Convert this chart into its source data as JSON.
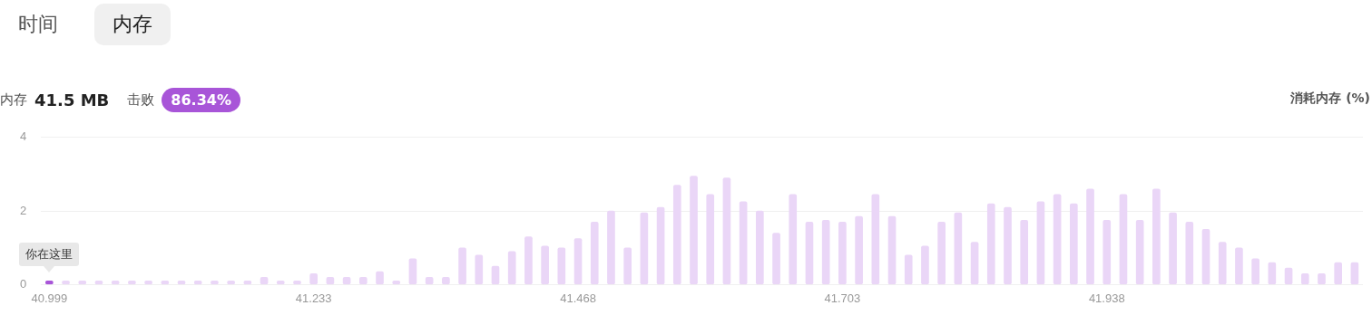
{
  "chart_data": {
    "type": "bar",
    "ylabel": "消耗内存 (%)",
    "categories": [
      "40.999",
      null,
      null,
      null,
      null,
      null,
      null,
      null,
      null,
      null,
      null,
      null,
      null,
      null,
      null,
      null,
      "41.233",
      null,
      null,
      null,
      null,
      null,
      null,
      null,
      null,
      null,
      null,
      null,
      null,
      null,
      null,
      null,
      "41.468",
      null,
      null,
      null,
      null,
      null,
      null,
      null,
      null,
      null,
      null,
      null,
      null,
      null,
      null,
      null,
      "41.703",
      null,
      null,
      null,
      null,
      null,
      null,
      null,
      null,
      null,
      null,
      null,
      null,
      null,
      null,
      null,
      "41.938",
      null,
      null,
      null,
      null,
      null,
      null,
      null,
      null,
      null,
      null,
      null,
      null,
      null,
      null,
      null
    ],
    "values": [
      0.1,
      0.1,
      0.1,
      0.1,
      0.1,
      0.1,
      0.1,
      0.1,
      0.1,
      0.1,
      0.1,
      0.1,
      0.1,
      0.2,
      0.1,
      0.1,
      0.3,
      0.2,
      0.2,
      0.2,
      0.35,
      0.1,
      0.7,
      0.2,
      0.2,
      1.0,
      0.8,
      0.5,
      0.9,
      1.3,
      1.05,
      1.0,
      1.25,
      1.7,
      2.0,
      1.0,
      1.95,
      2.1,
      2.7,
      2.95,
      2.45,
      2.9,
      2.25,
      2.0,
      1.4,
      2.45,
      1.7,
      1.75,
      1.7,
      1.85,
      2.45,
      1.85,
      0.8,
      1.05,
      1.7,
      1.95,
      1.15,
      2.2,
      2.1,
      1.75,
      2.25,
      2.45,
      2.2,
      2.6,
      1.75,
      2.45,
      1.75,
      2.6,
      1.95,
      1.7,
      1.5,
      1.15,
      1.0,
      0.7,
      0.6,
      0.45,
      0.3,
      0.3,
      0.6,
      0.6
    ],
    "colors": [
      "#a855d8",
      "#ead6f7",
      "#ead6f7",
      "#ead6f7",
      "#ead6f7",
      "#ead6f7",
      "#ead6f7",
      "#ead6f7",
      "#ead6f7",
      "#ead6f7",
      "#ead6f7",
      "#ead6f7",
      "#ead6f7",
      "#ead6f7",
      "#ead6f7",
      "#ead6f7",
      "#ead6f7",
      "#ead6f7",
      "#ead6f7",
      "#ead6f7",
      "#ead6f7",
      "#ead6f7",
      "#ead6f7",
      "#ead6f7",
      "#ead6f7",
      "#ead6f7",
      "#ead6f7",
      "#ead6f7",
      "#ead6f7",
      "#ead6f7",
      "#ead6f7",
      "#ead6f7",
      "#ead6f7",
      "#ead6f7",
      "#ead6f7",
      "#ead6f7",
      "#ead6f7",
      "#ead6f7",
      "#ead6f7",
      "#ead6f7",
      "#ead6f7",
      "#ead6f7",
      "#ead6f7",
      "#ead6f7",
      "#ead6f7",
      "#ead6f7",
      "#ead6f7",
      "#ead6f7",
      "#ead6f7",
      "#ead6f7",
      "#ead6f7",
      "#ead6f7",
      "#ead6f7",
      "#ead6f7",
      "#ead6f7",
      "#ead6f7",
      "#ead6f7",
      "#ead6f7",
      "#ead6f7",
      "#ead6f7",
      "#ead6f7",
      "#ead6f7",
      "#ead6f7",
      "#ead6f7",
      "#ead6f7",
      "#ead6f7",
      "#ead6f7",
      "#ead6f7",
      "#ead6f7",
      "#ead6f7",
      "#ead6f7",
      "#ead6f7",
      "#ead6f7",
      "#ead6f7",
      "#ead6f7",
      "#ead6f7",
      "#ead6f7",
      "#ead6f7",
      "#ead6f7",
      "#ead6f7"
    ],
    "ylim": [
      0,
      4
    ],
    "yticks": [
      0,
      2,
      4
    ],
    "grid": "y",
    "annotations": [
      "时间",
      "内存",
      "内存",
      "41.5 MB",
      "击败",
      "86.34%",
      {
        "text": "你在这里",
        "x": "40.999",
        "y": 0.1
      }
    ]
  }
}
